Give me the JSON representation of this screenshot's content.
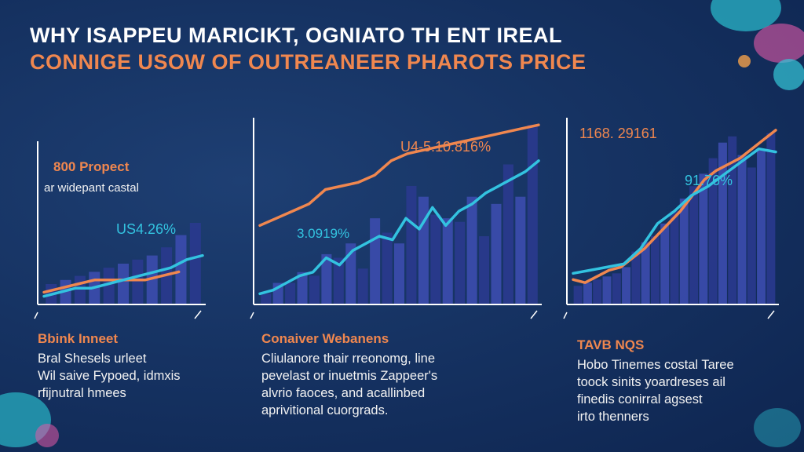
{
  "title_line1": "WHY ISAPPEU MARICIKT, OGNIATO TH ENT IREAL",
  "title_line2": "CONNIGE USOW OF OUTREANEER PHAROTS PRICE",
  "colors": {
    "accent_orange": "#f0874f",
    "accent_cyan": "#33c3e0",
    "bar_dark": "#2a3a8e",
    "bar_light": "#3c4cae"
  },
  "chart_data": [
    {
      "type": "bar",
      "annotations": [
        "800 Propect",
        "ar widepant castal",
        "US4.26%"
      ],
      "series": [
        {
          "values": [
            5,
            6,
            7,
            8,
            9,
            10,
            11,
            12,
            14,
            17,
            20
          ]
        }
      ],
      "overlay_lines": [
        {
          "color": "#f0874f",
          "values": [
            3,
            4,
            5,
            6,
            6,
            6,
            6,
            7,
            8
          ]
        },
        {
          "color": "#33c3e0",
          "values": [
            2,
            3,
            4,
            4,
            5,
            6,
            7,
            8,
            9,
            11,
            12
          ]
        }
      ],
      "ylim": [
        0,
        40
      ],
      "grid": false
    },
    {
      "type": "bar",
      "annotations": [
        "U4-5.10.816%",
        "3.0919%"
      ],
      "series": [
        {
          "values": [
            3,
            6,
            6,
            9,
            8,
            14,
            13,
            17,
            10,
            24,
            20,
            17,
            33,
            30,
            25,
            24,
            23,
            30,
            19,
            28,
            39,
            30,
            50
          ]
        }
      ],
      "overlay_lines": [
        {
          "color": "#f0874f",
          "values": [
            22,
            24,
            26,
            28,
            32,
            33,
            34,
            36,
            40,
            42,
            43,
            44,
            45,
            46,
            47,
            48,
            49,
            50
          ]
        },
        {
          "color": "#33c3e0",
          "values": [
            3,
            4,
            6,
            8,
            9,
            13,
            11,
            15,
            17,
            19,
            18,
            24,
            21,
            27,
            22,
            26,
            28,
            31,
            33,
            35,
            37,
            40
          ]
        }
      ],
      "ylim": [
        0,
        52
      ],
      "grid": false
    },
    {
      "type": "bar",
      "annotations": [
        "1168. 29161",
        "91.76%"
      ],
      "series": [
        {
          "values": [
            6,
            7,
            8,
            9,
            10,
            12,
            17,
            20,
            22,
            26,
            30,
            34,
            38,
            42,
            47,
            52,
            54,
            48,
            44,
            50,
            55
          ]
        }
      ],
      "overlay_lines": [
        {
          "color": "#f0874f",
          "values": [
            8,
            7,
            9,
            11,
            12,
            15,
            18,
            22,
            26,
            30,
            35,
            40,
            43,
            45,
            47,
            50,
            53,
            56
          ]
        },
        {
          "color": "#33c3e0",
          "values": [
            10,
            11,
            12,
            13,
            18,
            26,
            30,
            35,
            38,
            42,
            46,
            50,
            49
          ]
        }
      ],
      "ylim": [
        0,
        60
      ],
      "grid": false
    }
  ],
  "panels": [
    {
      "heading": "Bbink Inneet",
      "lines": [
        "Bral Shesels urleet",
        "Wil saive Fypoed, idmxis",
        "rfijnutral hmees"
      ]
    },
    {
      "heading": "Conaiver Webanens",
      "lines": [
        "Cliulanore thair rreonomg, line",
        "pevelast or inuetmis Zappeer's",
        "alvrio faoces, and acallinbed",
        "aprivitional cuorgrads."
      ]
    },
    {
      "heading": "TAVB NQS",
      "lines": [
        "Hobo Tinemes costal Taree",
        "toock sinits yoardreses ail",
        "finedis conirral agsest",
        "irto thenners"
      ]
    }
  ]
}
